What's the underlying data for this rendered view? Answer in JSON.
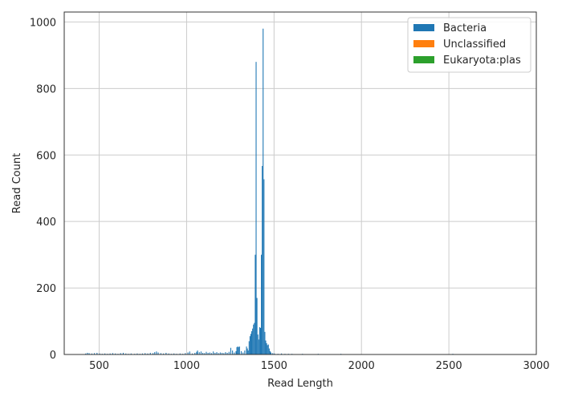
{
  "chart_data": {
    "type": "bar",
    "title": "",
    "xlabel": "Read Length",
    "ylabel": "Read Count",
    "xlim": [
      300,
      3000
    ],
    "ylim": [
      0,
      1030
    ],
    "x_ticks": [
      500,
      1000,
      1500,
      2000,
      2500,
      3000
    ],
    "y_ticks": [
      0,
      200,
      400,
      600,
      800,
      1000
    ],
    "grid": true,
    "legend_position": "top-right",
    "bin_width": 5,
    "series": [
      {
        "name": "Bacteria",
        "color": "#1f77b4",
        "bins": [
          [
            420,
            3
          ],
          [
            430,
            5
          ],
          [
            440,
            4
          ],
          [
            455,
            3
          ],
          [
            470,
            4
          ],
          [
            485,
            5
          ],
          [
            500,
            3
          ],
          [
            515,
            2
          ],
          [
            530,
            3
          ],
          [
            545,
            2
          ],
          [
            560,
            3
          ],
          [
            575,
            4
          ],
          [
            590,
            3
          ],
          [
            605,
            2
          ],
          [
            620,
            4
          ],
          [
            635,
            5
          ],
          [
            650,
            3
          ],
          [
            665,
            2
          ],
          [
            680,
            3
          ],
          [
            700,
            2
          ],
          [
            715,
            3
          ],
          [
            730,
            2
          ],
          [
            745,
            3
          ],
          [
            760,
            4
          ],
          [
            775,
            3
          ],
          [
            790,
            5
          ],
          [
            805,
            4
          ],
          [
            815,
            7
          ],
          [
            825,
            9
          ],
          [
            835,
            6
          ],
          [
            850,
            4
          ],
          [
            865,
            3
          ],
          [
            880,
            5
          ],
          [
            895,
            3
          ],
          [
            910,
            2
          ],
          [
            925,
            3
          ],
          [
            940,
            2
          ],
          [
            960,
            3
          ],
          [
            975,
            2
          ],
          [
            990,
            4
          ],
          [
            1005,
            6
          ],
          [
            1015,
            9
          ],
          [
            1030,
            3
          ],
          [
            1045,
            5
          ],
          [
            1055,
            8
          ],
          [
            1060,
            12
          ],
          [
            1070,
            7
          ],
          [
            1080,
            9
          ],
          [
            1090,
            5
          ],
          [
            1100,
            4
          ],
          [
            1110,
            8
          ],
          [
            1120,
            5
          ],
          [
            1130,
            6
          ],
          [
            1140,
            4
          ],
          [
            1150,
            9
          ],
          [
            1160,
            5
          ],
          [
            1170,
            7
          ],
          [
            1180,
            4
          ],
          [
            1190,
            6
          ],
          [
            1200,
            5
          ],
          [
            1210,
            4
          ],
          [
            1220,
            7
          ],
          [
            1230,
            5
          ],
          [
            1240,
            8
          ],
          [
            1250,
            20
          ],
          [
            1260,
            12
          ],
          [
            1270,
            6
          ],
          [
            1280,
            10
          ],
          [
            1285,
            22
          ],
          [
            1290,
            24
          ],
          [
            1295,
            22
          ],
          [
            1300,
            24
          ],
          [
            1310,
            10
          ],
          [
            1320,
            6
          ],
          [
            1330,
            12
          ],
          [
            1340,
            24
          ],
          [
            1345,
            18
          ],
          [
            1350,
            12
          ],
          [
            1355,
            40
          ],
          [
            1360,
            55
          ],
          [
            1365,
            62
          ],
          [
            1370,
            70
          ],
          [
            1375,
            78
          ],
          [
            1380,
            90
          ],
          [
            1385,
            95
          ],
          [
            1390,
            300
          ],
          [
            1395,
            880
          ],
          [
            1400,
            170
          ],
          [
            1405,
            60
          ],
          [
            1410,
            45
          ],
          [
            1415,
            82
          ],
          [
            1420,
            80
          ],
          [
            1425,
            300
          ],
          [
            1430,
            567
          ],
          [
            1435,
            980
          ],
          [
            1440,
            527
          ],
          [
            1445,
            68
          ],
          [
            1450,
            42
          ],
          [
            1455,
            34
          ],
          [
            1460,
            28
          ],
          [
            1465,
            30
          ],
          [
            1470,
            18
          ],
          [
            1475,
            10
          ],
          [
            1480,
            6
          ],
          [
            1490,
            4
          ],
          [
            1500,
            3
          ],
          [
            1520,
            2
          ],
          [
            1540,
            3
          ],
          [
            1560,
            2
          ],
          [
            1580,
            2
          ],
          [
            1600,
            2
          ],
          [
            1630,
            1
          ],
          [
            1660,
            2
          ],
          [
            1700,
            1
          ],
          [
            1750,
            2
          ],
          [
            1800,
            1
          ],
          [
            1880,
            2
          ],
          [
            1950,
            1
          ],
          [
            2100,
            1
          ],
          [
            2520,
            2
          ],
          [
            2870,
            1
          ]
        ]
      },
      {
        "name": "Unclassified",
        "color": "#ff7f0e",
        "bins": []
      },
      {
        "name": "Eukaryota:plas",
        "color": "#2ca02c",
        "bins": []
      }
    ]
  }
}
